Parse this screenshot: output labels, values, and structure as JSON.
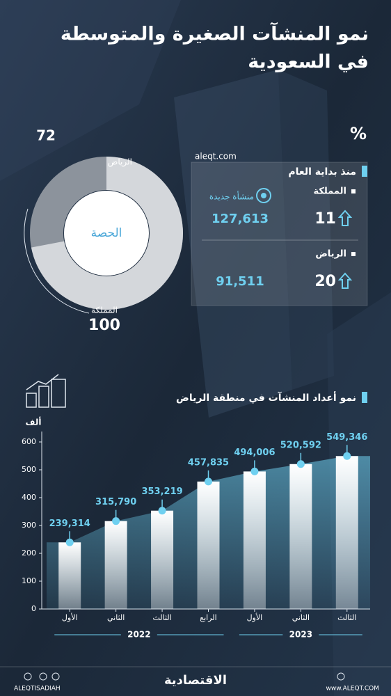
{
  "header": {
    "title_line1": "نمو المنشآت الصغيرة والمتوسطة",
    "title_line2": "في السعودية"
  },
  "share": {
    "center_label": "الحصة",
    "riyadh_label": "الرياض",
    "riyadh_value": 72,
    "kingdom_label": "المملكة",
    "kingdom_value": 100
  },
  "stats": {
    "percent_sign": "%",
    "source": "aleqt.com",
    "heading": "منذ بداية العام",
    "new_label": "منشأة جديدة",
    "rows": [
      {
        "label": "المملكة",
        "growth": 11,
        "count": "127,613"
      },
      {
        "label": "الرياض",
        "growth": 20,
        "count": "91,511"
      }
    ]
  },
  "chart_data": {
    "type": "bar",
    "title": "نمو أعداد المنشآت في منطقة الرياض",
    "y_unit": "ألف",
    "categories": [
      "الأول",
      "الثاني",
      "الثالث",
      "الرابع",
      "الأول",
      "الثاني",
      "الثالث"
    ],
    "year_labels": [
      "2022",
      "2023"
    ],
    "values": [
      239.314,
      315.79,
      353.219,
      457.835,
      494.006,
      520.592,
      549.346
    ],
    "value_labels": [
      "239,314",
      "315,790",
      "353,219",
      "457,835",
      "494,006",
      "520,592",
      "549,346"
    ],
    "color": "#ffffff",
    "line_color": "#6fd0f0",
    "ylim": [
      0,
      600
    ],
    "yticks": [
      0,
      100,
      200,
      300,
      400,
      500,
      600
    ],
    "grid": false
  },
  "footer": {
    "handle": "ALEQTISADIAH",
    "brand": "الاقتصادية",
    "website": "www.ALEQT.COM"
  }
}
